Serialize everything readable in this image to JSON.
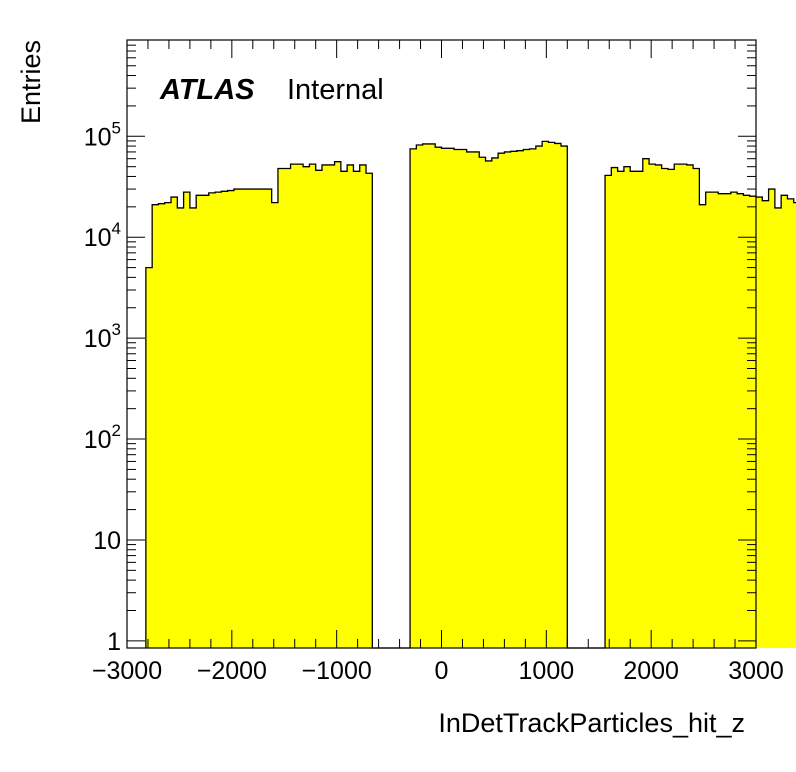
{
  "chart_data": {
    "type": "histogram",
    "title": "",
    "xlabel": "InDetTrackParticles_hit_z",
    "ylabel": "Entries",
    "label_bold": "ATLAS",
    "label_text": "Internal",
    "x_range": [
      -3000,
      3000
    ],
    "y_range": [
      0.85,
      900000
    ],
    "y_scale": "log",
    "fill_color": "#ffff00",
    "line_color": "#000000",
    "x_ticks": [
      {
        "value": -3000,
        "label": "−3000"
      },
      {
        "value": -2000,
        "label": "−2000"
      },
      {
        "value": -1000,
        "label": "−1000"
      },
      {
        "value": 0,
        "label": "0"
      },
      {
        "value": 1000,
        "label": "1000"
      },
      {
        "value": 2000,
        "label": "2000"
      },
      {
        "value": 3000,
        "label": "3000"
      }
    ],
    "y_ticks": [
      {
        "value": 1,
        "base": "1",
        "exp": ""
      },
      {
        "value": 10,
        "base": "10",
        "exp": ""
      },
      {
        "value": 100,
        "base": "10",
        "exp": "2"
      },
      {
        "value": 1000,
        "base": "10",
        "exp": "3"
      },
      {
        "value": 10000,
        "base": "10",
        "exp": "4"
      },
      {
        "value": 100000,
        "base": "10",
        "exp": "5"
      }
    ],
    "bin_width": 60,
    "bin_start": -2820,
    "values": [
      5000,
      21000,
      21500,
      22000,
      25000,
      19500,
      28000,
      19500,
      26000,
      26000,
      27500,
      28000,
      28500,
      29000,
      30000,
      30000,
      30000,
      30000,
      30000,
      30000,
      22000,
      48000,
      48000,
      53000,
      53000,
      50000,
      53000,
      46000,
      52000,
      52000,
      56000,
      45000,
      52000,
      45000,
      52000,
      43000,
      1,
      1,
      1,
      1,
      1,
      1,
      75000,
      82000,
      84000,
      84000,
      78000,
      76000,
      76000,
      74000,
      74000,
      70000,
      70000,
      62000,
      57000,
      61000,
      68000,
      70000,
      71000,
      72000,
      74000,
      75000,
      80000,
      89000,
      87000,
      85000,
      80000,
      1,
      1,
      1,
      1,
      1,
      1,
      41000,
      49000,
      45000,
      50000,
      45000,
      45000,
      60000,
      53000,
      52000,
      48000,
      47000,
      53000,
      53000,
      52000,
      48000,
      21000,
      28000,
      28000,
      27000,
      27000,
      28000,
      27000,
      26000,
      25500,
      25000,
      23000,
      30000,
      19500,
      26000,
      24000,
      22000,
      21000,
      5000
    ]
  }
}
